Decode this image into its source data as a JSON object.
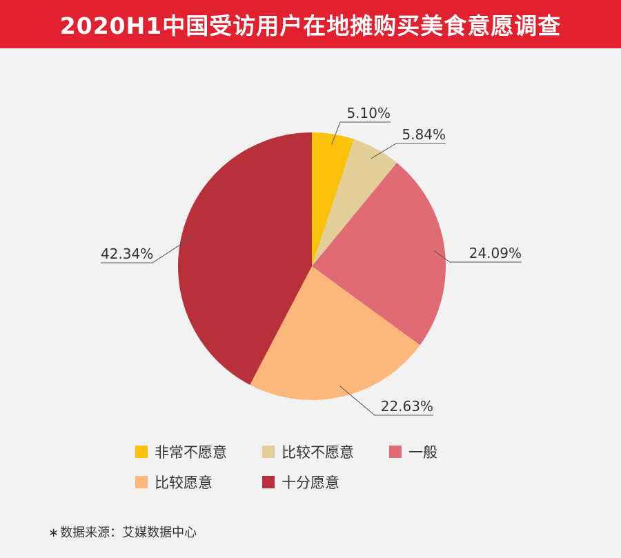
{
  "header": {
    "title": "2020H1中国受访用户在地摊购买美食意愿调查",
    "background": "#e1212f"
  },
  "chart_data": {
    "type": "pie",
    "title": "2020H1中国受访用户在地摊购买美食意愿调查",
    "slices": [
      {
        "label": "非常不愿意",
        "value": 5.1,
        "display": "5.10%",
        "color": "#fcc10a"
      },
      {
        "label": "比较不愿意",
        "value": 5.84,
        "display": "5.84%",
        "color": "#e2cf98"
      },
      {
        "label": "一般",
        "value": 24.09,
        "display": "24.09%",
        "color": "#e16b74"
      },
      {
        "label": "比较愿意",
        "value": 22.63,
        "display": "22.63%",
        "color": "#fdb77b"
      },
      {
        "label": "十分愿意",
        "value": 42.34,
        "display": "42.34%",
        "color": "#b8313a"
      }
    ],
    "legend_position": "bottom"
  },
  "source": {
    "star": "∗",
    "text": "数据来源：艾媒数据中心"
  }
}
